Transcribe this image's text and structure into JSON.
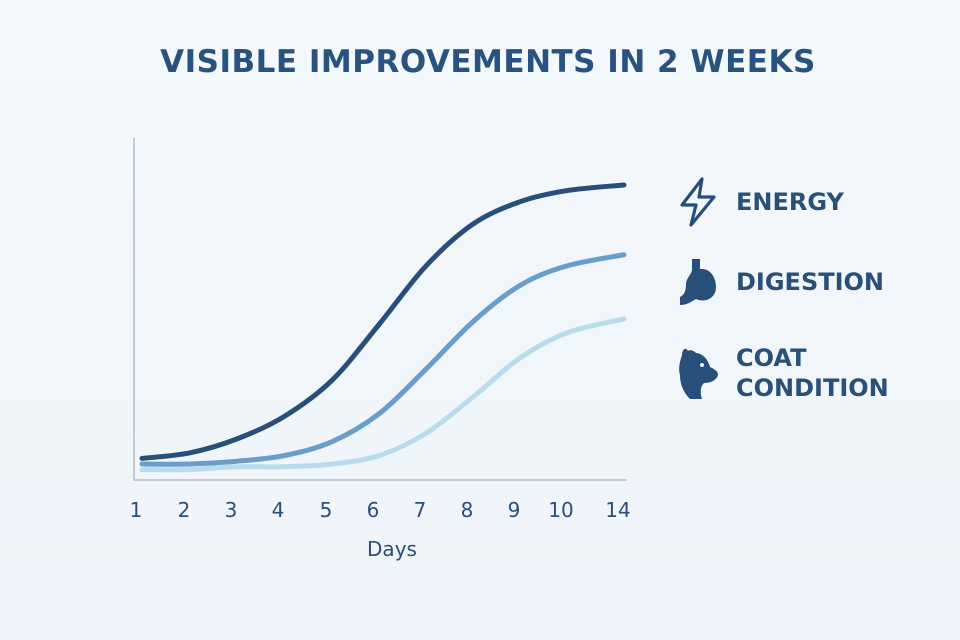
{
  "chart_data": {
    "type": "line",
    "title": "VISIBLE IMPROVEMENTS IN 2 WEEKS",
    "xlabel": "Days",
    "ylabel": "",
    "x": [
      "1",
      "2",
      "3",
      "4",
      "5",
      "6",
      "7",
      "8",
      "9",
      "10",
      "14"
    ],
    "ylim": [
      0,
      100
    ],
    "grid": false,
    "legend_position": "right",
    "series": [
      {
        "name": "ENERGY",
        "color": "#284f7a",
        "icon": "lightning-icon",
        "values": [
          2,
          4,
          9,
          17,
          30,
          50,
          71,
          86,
          94,
          98,
          100
        ]
      },
      {
        "name": "DIGESTION",
        "color": "#6a9dca",
        "icon": "stomach-icon",
        "values": [
          0,
          0,
          1,
          3,
          8,
          18,
          34,
          51,
          64,
          71,
          75
        ]
      },
      {
        "name": "COAT CONDITION",
        "color": "#b9dced",
        "icon": "dog-head-icon",
        "values": [
          -2,
          -2,
          -1,
          -1,
          0,
          3,
          11,
          24,
          38,
          47,
          52
        ]
      }
    ]
  }
}
